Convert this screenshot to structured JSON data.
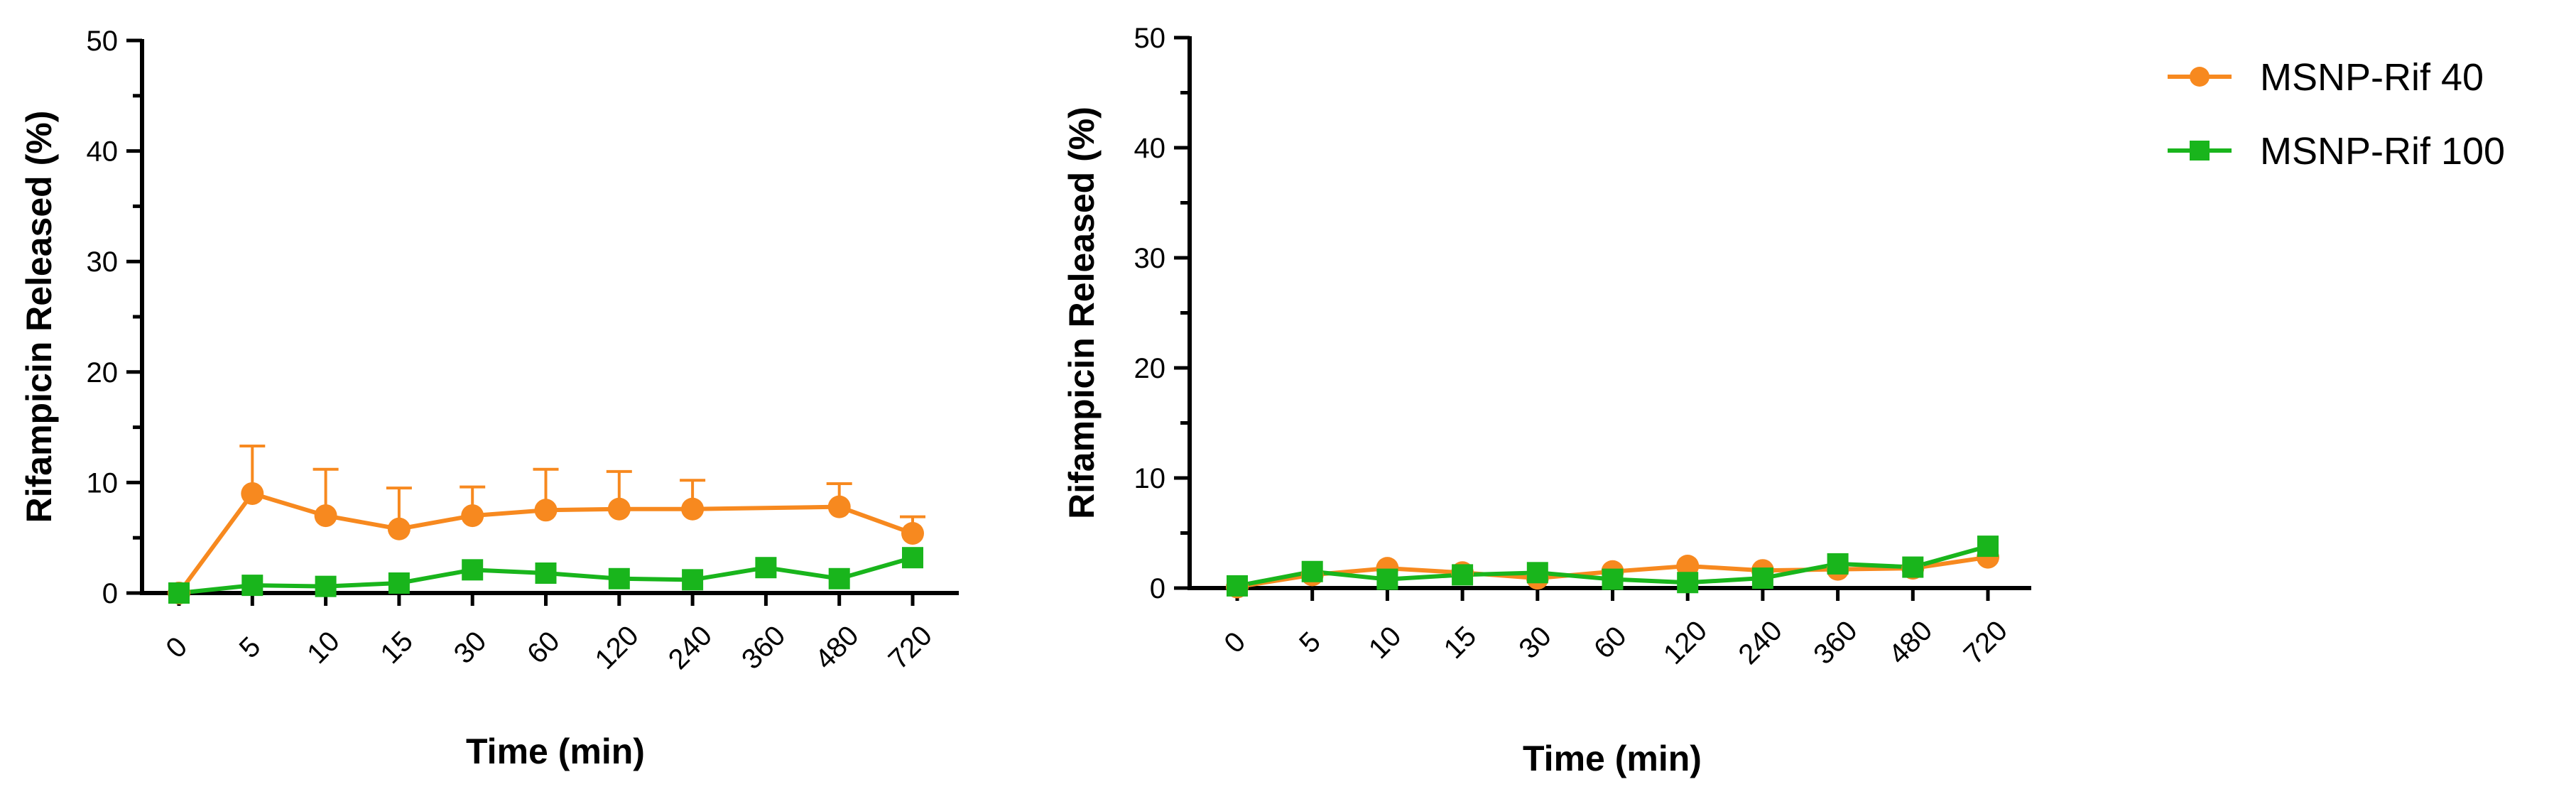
{
  "chart_data": [
    {
      "type": "line",
      "title": "",
      "xlabel": "Time (min)",
      "ylabel": "Rifampicin  Released (%)",
      "ylim": [
        0,
        50
      ],
      "yticks": [
        0,
        10,
        20,
        30,
        40,
        50
      ],
      "categories": [
        "0",
        "5",
        "10",
        "15",
        "30",
        "60",
        "120",
        "240",
        "360",
        "480",
        "720"
      ],
      "series": [
        {
          "name": "MSNP-Rif 40",
          "color": "#f7891f",
          "marker": "circle",
          "values": [
            0,
            9,
            7,
            5.8,
            7,
            7.5,
            7.6,
            7.6,
            null,
            7.8,
            5.4
          ],
          "error_plus": [
            0,
            4.3,
            4.2,
            3.7,
            2.6,
            3.7,
            3.4,
            2.6,
            null,
            2.1,
            1.5
          ]
        },
        {
          "name": "MSNP-Rif 100",
          "color": "#19b51c",
          "marker": "square",
          "values": [
            0,
            0.7,
            0.6,
            0.9,
            2.1,
            1.8,
            1.3,
            1.2,
            2.3,
            1.3,
            3.2
          ],
          "error_plus": [
            0,
            0,
            0,
            0,
            0,
            0,
            0,
            0,
            0,
            0,
            0
          ]
        }
      ]
    },
    {
      "type": "line",
      "title": "",
      "xlabel": "Time (min)",
      "ylabel": "Rifampicin Released (%)",
      "ylim": [
        0,
        50
      ],
      "yticks": [
        0,
        10,
        20,
        30,
        40,
        50
      ],
      "categories": [
        "0",
        "5",
        "10",
        "15",
        "30",
        "60",
        "120",
        "240",
        "360",
        "480",
        "720"
      ],
      "series": [
        {
          "name": "MSNP-Rif 40",
          "color": "#f7891f",
          "marker": "circle",
          "values": [
            0.1,
            1.2,
            1.8,
            1.4,
            0.9,
            1.5,
            2.0,
            1.6,
            1.7,
            1.8,
            2.8
          ],
          "error_plus": [
            0,
            0,
            0,
            0,
            0,
            0,
            0,
            0,
            0,
            0,
            0
          ]
        },
        {
          "name": "MSNP-Rif 100",
          "color": "#19b51c",
          "marker": "square",
          "values": [
            0.2,
            1.5,
            0.8,
            1.2,
            1.4,
            0.8,
            0.5,
            0.9,
            2.2,
            1.9,
            3.8
          ],
          "error_plus": [
            0,
            0,
            0,
            0,
            0,
            0,
            0,
            0,
            0,
            0,
            0
          ]
        }
      ]
    }
  ],
  "legend": {
    "placement": "top-right",
    "entries": [
      {
        "label": "MSNP-Rif 40",
        "color": "#f7891f",
        "marker": "circle"
      },
      {
        "label": "MSNP-Rif 100",
        "color": "#19b51c",
        "marker": "square"
      }
    ]
  }
}
